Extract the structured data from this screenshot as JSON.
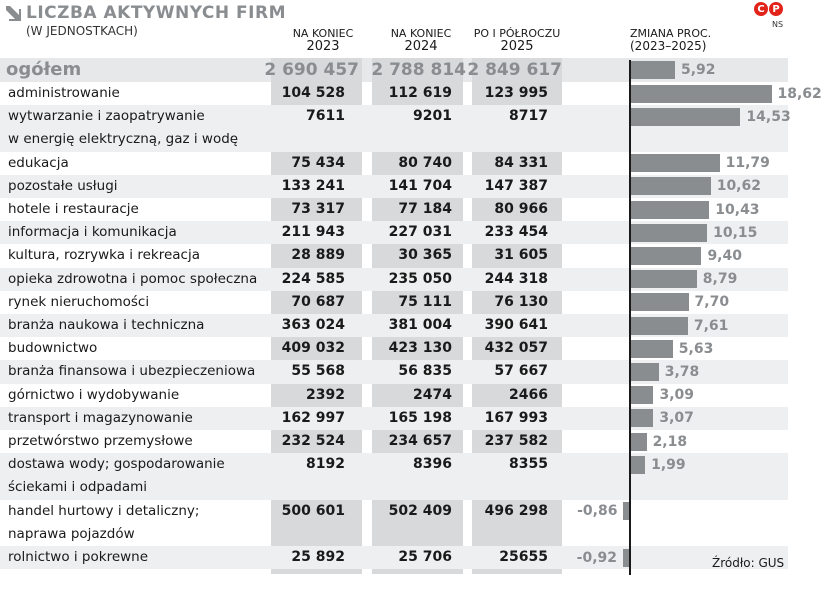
{
  "header": {
    "title": "LICZBA AKTYWNYCH FIRM",
    "subtitle": "(W JEDNOSTKACH)",
    "logo": [
      "C",
      "P"
    ],
    "author": "NS",
    "columns": [
      {
        "line1": "NA KONIEC",
        "line2": "2023"
      },
      {
        "line1": "NA KONIEC",
        "line2": "2024"
      },
      {
        "line1": "PO I PÓŁROCZU",
        "line2": "2025"
      }
    ],
    "change": {
      "line1": "ZMIANA PROC.",
      "line2": "(2023–2025)"
    }
  },
  "source": "Źródło: GUS",
  "chart_data": {
    "type": "table",
    "title": "LICZBA AKTYWNYCH FIRM",
    "subtitle": "(W JEDNOSTKACH)",
    "column_headers": [
      "NA KONIEC 2023",
      "NA KONIEC 2024",
      "PO I PÓŁROCZU 2025",
      "ZMIANA PROC. (2023–2025)"
    ],
    "overall": {
      "label": "ogółem",
      "v2023": "2 690 457",
      "v2024": "2 788 814",
      "v2025": "2 849 617",
      "change": 5.92,
      "change_label": "5,92"
    },
    "rows": [
      {
        "label": [
          "administrowanie"
        ],
        "v2023": "104 528",
        "v2024": "112 619",
        "v2025": "123 995",
        "change": 18.62,
        "change_label": "18,62"
      },
      {
        "label": [
          "wytwarzanie i zaopatrywanie",
          "w energię elektryczną, gaz i wodę"
        ],
        "v2023": "7611",
        "v2024": "9201",
        "v2025": "8717",
        "change": 14.53,
        "change_label": "14,53"
      },
      {
        "label": [
          "edukacja"
        ],
        "v2023": "75 434",
        "v2024": "80 740",
        "v2025": "84 331",
        "change": 11.79,
        "change_label": "11,79"
      },
      {
        "label": [
          "pozostałe usługi"
        ],
        "v2023": "133 241",
        "v2024": "141 704",
        "v2025": "147 387",
        "change": 10.62,
        "change_label": "10,62"
      },
      {
        "label": [
          "hotele i restauracje"
        ],
        "v2023": "73 317",
        "v2024": "77 184",
        "v2025": "80 966",
        "change": 10.43,
        "change_label": "10,43"
      },
      {
        "label": [
          "informacja i komunikacja"
        ],
        "v2023": "211 943",
        "v2024": "227 031",
        "v2025": "233 454",
        "change": 10.15,
        "change_label": "10,15"
      },
      {
        "label": [
          "kultura, rozrywka i rekreacja"
        ],
        "v2023": "28 889",
        "v2024": "30 365",
        "v2025": "31 605",
        "change": 9.4,
        "change_label": "9,40"
      },
      {
        "label": [
          "opieka zdrowotna i pomoc społeczna"
        ],
        "v2023": "224 585",
        "v2024": "235 050",
        "v2025": "244 318",
        "change": 8.79,
        "change_label": "8,79"
      },
      {
        "label": [
          "rynek nieruchomości"
        ],
        "v2023": "70 687",
        "v2024": "75 111",
        "v2025": "76 130",
        "change": 7.7,
        "change_label": "7,70"
      },
      {
        "label": [
          "branża naukowa i techniczna"
        ],
        "v2023": "363 024",
        "v2024": "381 004",
        "v2025": "390 641",
        "change": 7.61,
        "change_label": "7,61"
      },
      {
        "label": [
          "budownictwo"
        ],
        "v2023": "409 032",
        "v2024": "423 130",
        "v2025": "432 057",
        "change": 5.63,
        "change_label": "5,63"
      },
      {
        "label": [
          "branża finansowa i ubezpieczeniowa"
        ],
        "v2023": "55 568",
        "v2024": "56 835",
        "v2025": "57 667",
        "change": 3.78,
        "change_label": "3,78"
      },
      {
        "label": [
          "górnictwo i wydobywanie"
        ],
        "v2023": "2392",
        "v2024": "2474",
        "v2025": "2466",
        "change": 3.09,
        "change_label": "3,09"
      },
      {
        "label": [
          "transport i magazynowanie"
        ],
        "v2023": "162 997",
        "v2024": "165 198",
        "v2025": "167 993",
        "change": 3.07,
        "change_label": "3,07"
      },
      {
        "label": [
          "przetwórstwo przemysłowe"
        ],
        "v2023": "232 524",
        "v2024": "234 657",
        "v2025": "237 582",
        "change": 2.18,
        "change_label": "2,18"
      },
      {
        "label": [
          "dostawa wody; gospodarowanie",
          "ściekami i odpadami"
        ],
        "v2023": "8192",
        "v2024": "8396",
        "v2025": "8355",
        "change": 1.99,
        "change_label": "1,99"
      },
      {
        "label": [
          "handel hurtowy i detaliczny;",
          "naprawa pojazdów"
        ],
        "v2023": "500 601",
        "v2024": "502 409",
        "v2025": "496 298",
        "change": -0.86,
        "change_label": "-0,86"
      },
      {
        "label": [
          "rolnictwo i pokrewne"
        ],
        "v2023": "25 892",
        "v2024": "25 706",
        "v2025": "25655",
        "change": -0.92,
        "change_label": "-0,92"
      }
    ],
    "bar_color": "#8a8d90"
  }
}
